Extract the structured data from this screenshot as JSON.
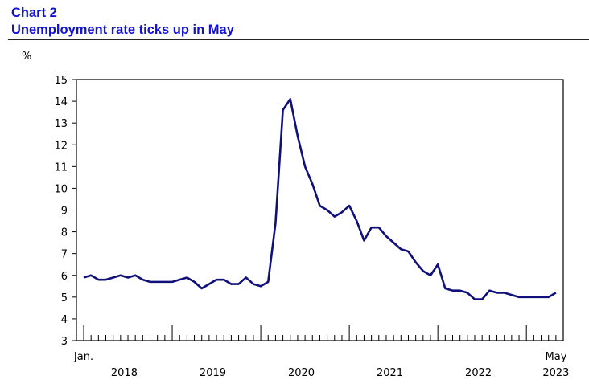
{
  "header": {
    "chart_number": "Chart 2",
    "title": "Unemployment rate ticks up in May"
  },
  "colors": {
    "title": "#1010d8",
    "line": "#10107a",
    "axis": "#000000"
  },
  "chart_data": {
    "type": "line",
    "title": "Unemployment rate ticks up in May",
    "ylabel": "%",
    "xlabel": "",
    "ylim": [
      3,
      15
    ],
    "y_ticks": [
      "3",
      "4",
      "5",
      "6",
      "7",
      "8",
      "9",
      "10",
      "11",
      "12",
      "13",
      "14",
      "15"
    ],
    "x_start_label": "Jan.",
    "x_end_label": "May",
    "year_labels": [
      "2018",
      "2019",
      "2020",
      "2021",
      "2022",
      "2023"
    ],
    "grid": false,
    "series": [
      {
        "values": [
          5.9,
          6.0,
          5.8,
          5.8,
          5.9,
          6.0,
          5.9,
          6.0,
          5.8,
          5.7,
          5.7,
          5.7,
          5.7,
          5.8,
          5.9,
          5.7,
          5.4,
          5.6,
          5.8,
          5.8,
          5.6,
          5.6,
          5.9,
          5.6,
          5.5,
          5.7,
          8.4,
          13.6,
          14.1,
          12.4,
          11.0,
          10.2,
          9.2,
          9.0,
          8.7,
          8.9,
          9.2,
          8.5,
          7.6,
          8.2,
          8.2,
          7.8,
          7.5,
          7.2,
          7.1,
          6.6,
          6.2,
          6.0,
          6.5,
          5.4,
          5.3,
          5.3,
          5.2,
          4.9,
          4.9,
          5.3,
          5.2,
          5.2,
          5.1,
          5.0,
          5.0,
          5.0,
          5.0,
          5.0,
          5.2
        ]
      }
    ]
  }
}
